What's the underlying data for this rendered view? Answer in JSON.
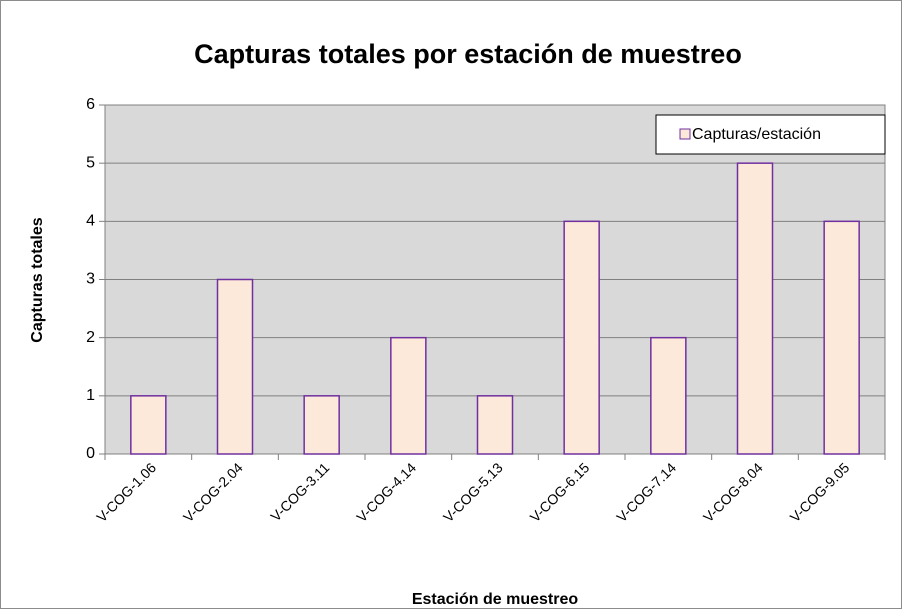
{
  "chart_data": {
    "type": "bar",
    "title": "Capturas totales por estación de muestreo",
    "x_label": "Estación de muestreo",
    "y_label": "Capturas totales",
    "categories": [
      "V-COG-1.06",
      "V-COG-2.04",
      "V-COG-3.11",
      "V-COG-4.14",
      "V-COG-5.13",
      "V-COG-6.15",
      "V-COG-7.14",
      "V-COG-8.04",
      "V-COG-9.05"
    ],
    "series": [
      {
        "name": "Capturas/estación",
        "color": "#fde9d9",
        "edge_color": "#7030a0",
        "values": [
          1,
          3,
          1,
          2,
          1,
          4,
          2,
          5,
          4
        ]
      }
    ],
    "ylim": [
      0,
      6
    ],
    "yticks": [
      0,
      1,
      2,
      3,
      4,
      5,
      6
    ],
    "grid": true,
    "legend": "upper right"
  }
}
